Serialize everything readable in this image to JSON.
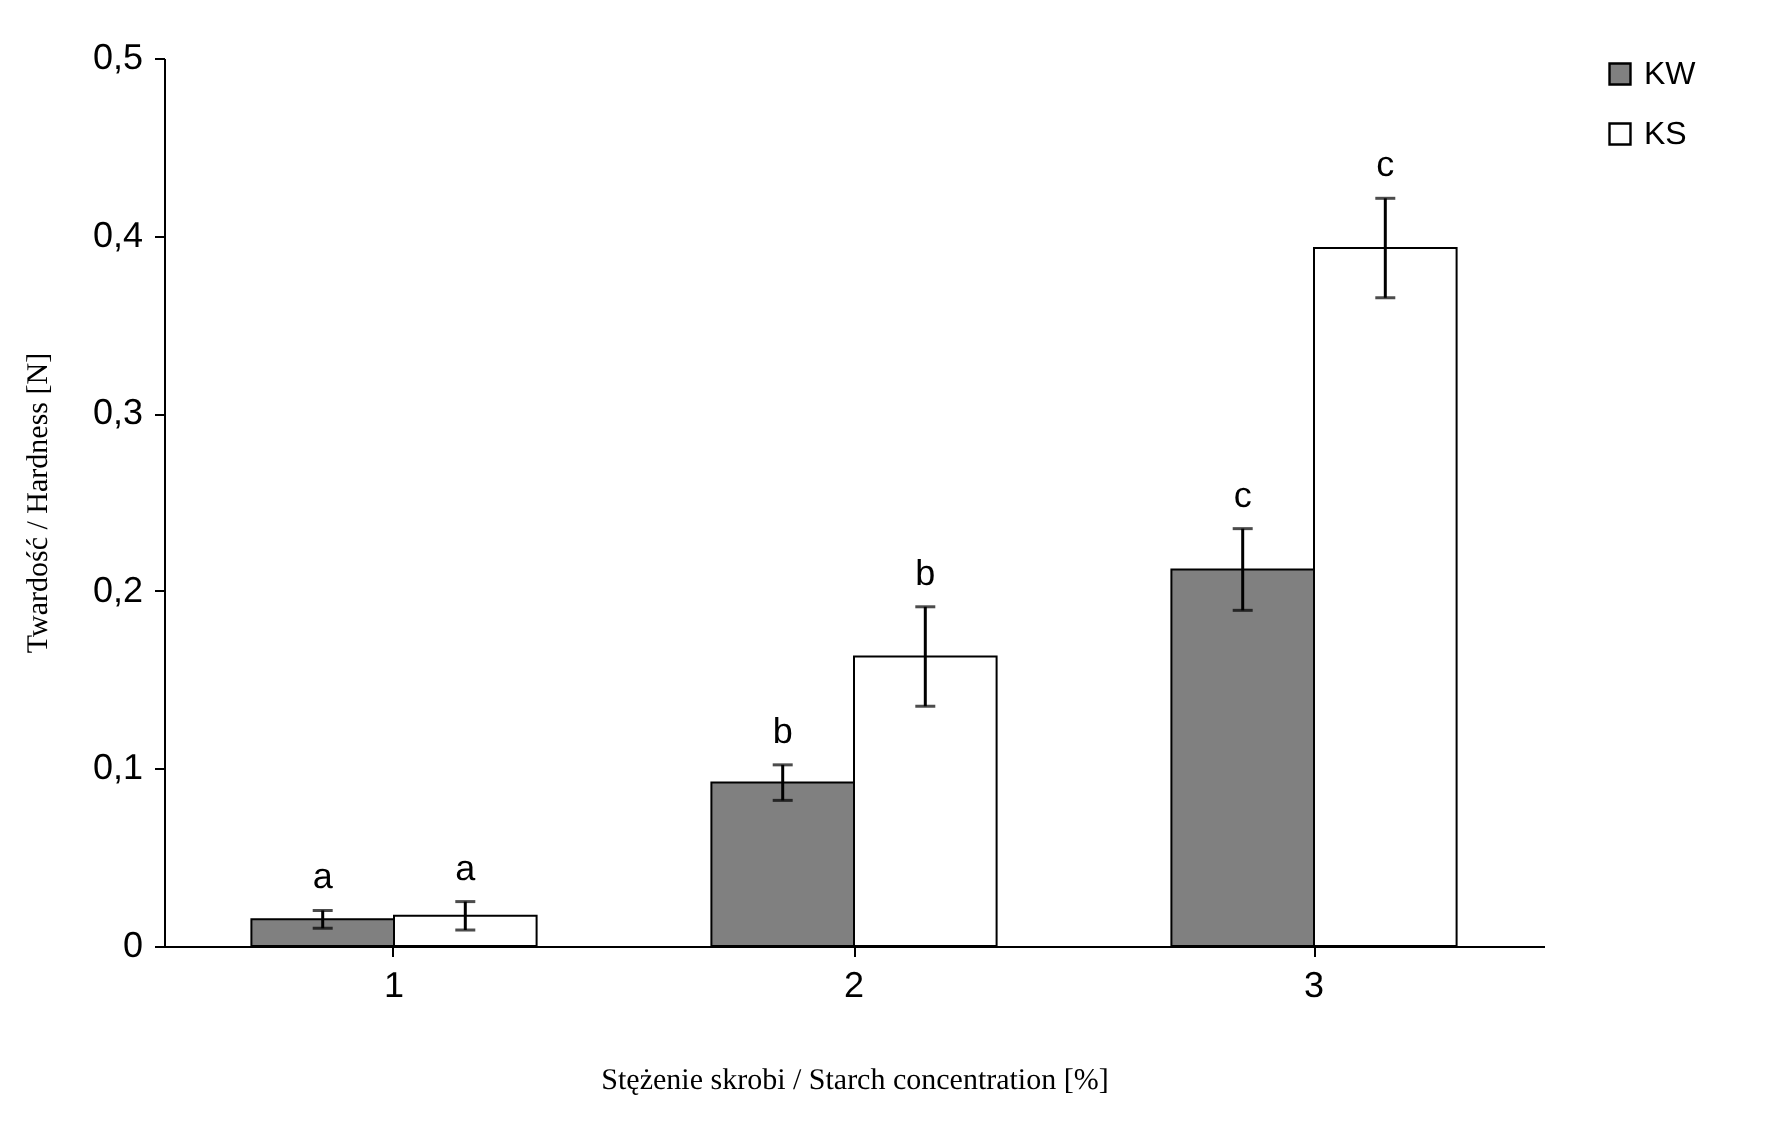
{
  "chart_data": {
    "type": "bar",
    "xlabel": "Stężenie skrobi / Starch concentration [%]",
    "ylabel": "Twardość / Hardness [N]",
    "categories": [
      "1",
      "2",
      "3"
    ],
    "series": [
      {
        "name": "KW",
        "color": "#808080",
        "values": [
          0.015,
          0.092,
          0.212
        ],
        "errors": [
          0.005,
          0.01,
          0.023
        ],
        "value_labels": [
          "a",
          "b",
          "c"
        ]
      },
      {
        "name": "KS",
        "color": "#ffffff",
        "values": [
          0.017,
          0.163,
          0.393
        ],
        "errors": [
          0.008,
          0.028,
          0.028
        ],
        "value_labels": [
          "a",
          "b",
          "c"
        ]
      }
    ],
    "ylim": [
      0,
      0.5
    ],
    "yticks": [
      0,
      {
        "value": 0.1,
        "label": "0,1"
      },
      {
        "value": 0.2,
        "label": "0,2"
      },
      {
        "value": 0.3,
        "label": "0,3"
      },
      {
        "value": 0.4,
        "label": "0,4"
      },
      {
        "value": 0.5,
        "label": "0,5"
      }
    ],
    "legend": "right",
    "grid": false
  }
}
